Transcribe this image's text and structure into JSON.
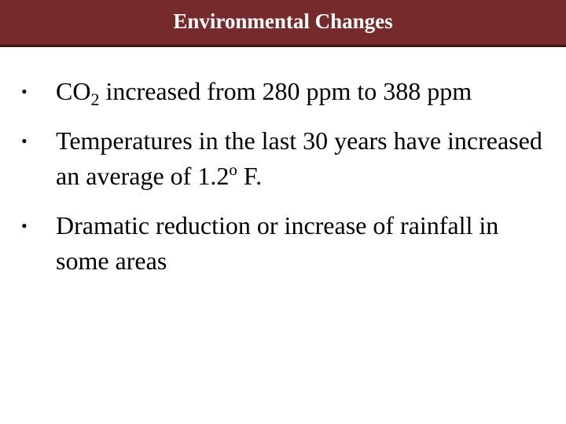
{
  "slide": {
    "title": "Environmental Changes",
    "bullet_symbol": "•",
    "bullets": [
      {
        "pre": "CO",
        "subscript": "2",
        "post": " increased from 280 ppm to 388 ppm"
      },
      {
        "pre": "Temperatures in the last 30 years have increased an average of 1.2",
        "superscript": "o",
        "post": " F."
      },
      {
        "text": "Dramatic reduction or increase of rainfall in some areas"
      }
    ]
  },
  "colors": {
    "title_bar": "#772a2c",
    "title_text": "#ffffff",
    "body_text": "#000000",
    "background": "#ffffff"
  }
}
